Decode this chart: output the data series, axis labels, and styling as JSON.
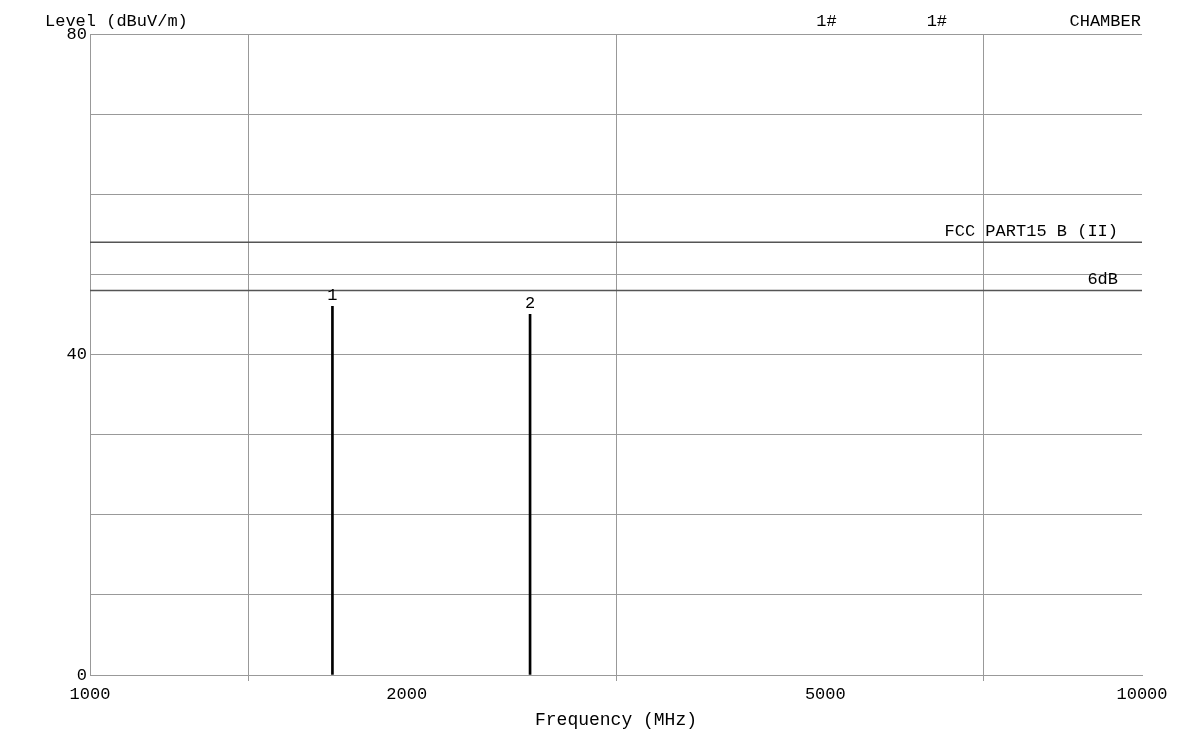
{
  "chart_data": {
    "type": "bar",
    "xlabel": "Frequency (MHz)",
    "ylabel": "Level (dBuV/m)",
    "annotations": [
      "1#",
      "1#",
      "CHAMBER",
      {
        "text": "1",
        "x": 1700,
        "y": 46
      },
      {
        "text": "2",
        "x": 2620,
        "y": 45
      }
    ],
    "x": [
      1700,
      2620
    ],
    "values": [
      46,
      45
    ],
    "color": "#000000",
    "log": "x",
    "xlim": [
      1000,
      10000
    ],
    "xticks": [
      1000,
      2000,
      5000,
      10000
    ],
    "ylim": [
      0,
      80
    ],
    "yticks": [
      0,
      {
        "value": 10,
        "label": null
      },
      {
        "value": 20,
        "label": null
      },
      {
        "value": 30,
        "label": null
      },
      40,
      {
        "value": 50,
        "label": null
      },
      {
        "value": 60,
        "label": null
      },
      {
        "value": 70,
        "label": null
      },
      80
    ],
    "ref_lines": [
      {
        "axis": "y",
        "value": 54,
        "label": "FCC PART15 B (II)",
        "color": "#555555"
      },
      {
        "axis": "y",
        "value": 48,
        "label": "6dB",
        "color": "#555555"
      }
    ],
    "grid": true
  }
}
